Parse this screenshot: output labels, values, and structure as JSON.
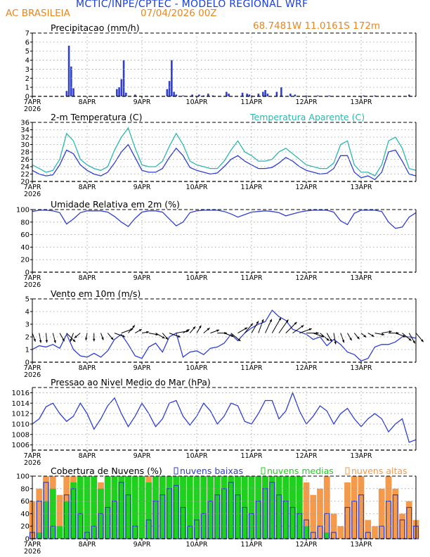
{
  "header": {
    "title": "MCTIC/INPE/CPTEC - MODELO REGIONAL WRF",
    "location": "AC BRASILEIA",
    "date": "07/04/2026 00Z",
    "coords": "68.7481W  11.0161S  172m"
  },
  "x_axis": {
    "ticks": [
      "7APR",
      "8APR",
      "9APR",
      "10APR",
      "11APR",
      "12APR",
      "13APR"
    ],
    "year": "2026",
    "hours_range": [
      0,
      168
    ]
  },
  "colors": {
    "blue": "#2f3fcf",
    "cyan": "#2ab7b0",
    "green": "#1fd11f",
    "orange": "#f59a4a",
    "dark": "#000000"
  },
  "chart_data": [
    {
      "id": "precip",
      "type": "bar",
      "title": "Precipitacao (mm/h)",
      "ylim": [
        0,
        7
      ],
      "yticks": [
        0,
        1,
        2,
        3,
        4,
        5,
        6,
        7
      ],
      "x": [
        15,
        16,
        17,
        18,
        37,
        38,
        39,
        40,
        41,
        45,
        59,
        60,
        61,
        62,
        63,
        66,
        70,
        73,
        75,
        77,
        79,
        85,
        86,
        92,
        94,
        95,
        96,
        99,
        101,
        102,
        103,
        107,
        109,
        113,
        115,
        120,
        125,
        130,
        145,
        150,
        165
      ],
      "values": [
        0.6,
        5.6,
        3.3,
        0.9,
        0.8,
        1.0,
        1.9,
        4.0,
        0.4,
        0.2,
        0.8,
        1.7,
        4.0,
        0.5,
        0.2,
        0.1,
        0.2,
        0.2,
        0.1,
        0.3,
        0.1,
        0.5,
        0.3,
        0.4,
        0.3,
        0.2,
        0.1,
        0.3,
        0.5,
        0.7,
        0.3,
        0.5,
        1.0,
        0.3,
        0.2,
        0.1,
        0.1,
        0.1,
        0.1,
        0.1,
        0.2
      ]
    },
    {
      "id": "temp",
      "type": "line",
      "title": "2-m Temperatura (C)",
      "legend": "Temperatura Aparente (C)",
      "ylim": [
        20,
        36
      ],
      "yticks": [
        20,
        22,
        24,
        26,
        28,
        30,
        32,
        34,
        36
      ],
      "x": [
        0,
        3,
        6,
        9,
        12,
        15,
        18,
        21,
        24,
        27,
        30,
        33,
        36,
        39,
        42,
        45,
        48,
        51,
        54,
        57,
        60,
        63,
        66,
        69,
        72,
        75,
        78,
        81,
        84,
        87,
        90,
        93,
        96,
        99,
        102,
        105,
        108,
        111,
        114,
        117,
        120,
        123,
        126,
        129,
        132,
        135,
        138,
        141,
        144,
        147,
        150,
        153,
        156,
        159,
        162,
        165,
        168
      ],
      "series": [
        {
          "name": "2-m Temperatura (C)",
          "values": [
            23.0,
            22.0,
            21.5,
            21.8,
            24.5,
            28.5,
            27.5,
            24.5,
            23.0,
            22.0,
            21.5,
            22.5,
            25.0,
            28.0,
            30.0,
            26.5,
            23.0,
            22.5,
            22.5,
            23.5,
            26.5,
            29.0,
            27.0,
            23.8,
            23.0,
            22.5,
            22.0,
            22.3,
            24.0,
            26.0,
            27.0,
            25.5,
            24.5,
            23.5,
            23.5,
            23.8,
            25.0,
            26.5,
            25.5,
            24.0,
            23.0,
            22.5,
            22.0,
            22.2,
            23.5,
            27.0,
            27.0,
            22.5,
            21.0,
            21.5,
            20.5,
            22.5,
            28.0,
            28.5,
            25.5,
            22.0,
            21.5
          ]
        },
        {
          "name": "Temperatura Aparente (C)",
          "values": [
            24.5,
            23.5,
            22.5,
            23.0,
            26.0,
            33.0,
            31.0,
            26.0,
            24.5,
            23.5,
            23.0,
            24.0,
            28.5,
            32.0,
            34.5,
            29.0,
            24.5,
            24.0,
            24.0,
            25.5,
            29.5,
            33.0,
            30.0,
            25.5,
            24.5,
            24.0,
            23.5,
            23.5,
            25.5,
            28.5,
            31.0,
            28.0,
            27.0,
            25.5,
            25.5,
            26.0,
            28.0,
            29.0,
            27.5,
            26.0,
            24.5,
            24.0,
            23.5,
            23.5,
            25.0,
            30.0,
            31.0,
            24.5,
            22.5,
            22.5,
            21.5,
            24.5,
            31.0,
            32.0,
            29.0,
            23.5,
            23.0
          ]
        }
      ]
    },
    {
      "id": "rh",
      "type": "line",
      "title": "Umidade Relativa em 2m (%)",
      "ylim": [
        0,
        100
      ],
      "yticks": [
        0,
        20,
        40,
        60,
        80,
        100
      ],
      "x": [
        0,
        3,
        6,
        9,
        12,
        15,
        18,
        21,
        24,
        27,
        30,
        33,
        36,
        39,
        42,
        45,
        48,
        51,
        54,
        57,
        60,
        63,
        66,
        69,
        72,
        75,
        78,
        81,
        84,
        87,
        90,
        93,
        96,
        99,
        102,
        105,
        108,
        111,
        114,
        117,
        120,
        123,
        126,
        129,
        132,
        135,
        138,
        141,
        144,
        147,
        150,
        153,
        156,
        159,
        162,
        165,
        168
      ],
      "values": [
        97,
        99,
        99,
        98,
        95,
        77,
        85,
        95,
        98,
        98,
        98,
        96,
        89,
        80,
        73,
        86,
        96,
        98,
        98,
        96,
        85,
        74,
        80,
        95,
        98,
        99,
        99,
        99,
        97,
        93,
        88,
        92,
        96,
        97,
        98,
        97,
        95,
        90,
        93,
        96,
        98,
        99,
        99,
        99,
        96,
        82,
        76,
        94,
        99,
        99,
        99,
        97,
        80,
        70,
        72,
        88,
        95
      ]
    },
    {
      "id": "wind",
      "type": "line",
      "title": "Vento em 10m (m/s)",
      "ylim": [
        0,
        5
      ],
      "yticks": [
        0,
        1,
        2,
        3,
        4,
        5
      ],
      "x": [
        0,
        3,
        6,
        9,
        12,
        15,
        18,
        21,
        24,
        27,
        30,
        33,
        36,
        39,
        42,
        45,
        48,
        51,
        54,
        57,
        60,
        63,
        66,
        69,
        72,
        75,
        78,
        81,
        84,
        87,
        90,
        93,
        96,
        99,
        102,
        105,
        108,
        111,
        114,
        117,
        120,
        123,
        126,
        129,
        132,
        135,
        138,
        141,
        144,
        147,
        150,
        153,
        156,
        159,
        162,
        165,
        168
      ],
      "values": [
        1.0,
        1.3,
        1.2,
        1.4,
        1.1,
        2.2,
        1.0,
        0.5,
        0.4,
        0.7,
        0.4,
        0.9,
        1.8,
        2.2,
        1.4,
        0.5,
        0.3,
        1.2,
        1.5,
        0.8,
        2.0,
        2.3,
        0.4,
        0.8,
        0.9,
        0.6,
        1.1,
        1.2,
        1.5,
        2.2,
        1.7,
        2.3,
        2.7,
        3.0,
        3.2,
        4.1,
        3.6,
        3.3,
        2.6,
        2.4,
        2.2,
        1.8,
        2.0,
        1.3,
        1.8,
        1.4,
        0.8,
        0.6,
        0.1,
        0.3,
        1.2,
        1.4,
        1.4,
        1.6,
        2.0,
        2.0,
        1.9
      ],
      "arrow_baseline": 2.3,
      "arrow_dirs": [
        160,
        170,
        175,
        165,
        150,
        135,
        200,
        230,
        190,
        180,
        160,
        140,
        110,
        70,
        40,
        60,
        80,
        100,
        120,
        140,
        110,
        80,
        60,
        40,
        30,
        50,
        70,
        90,
        110,
        130,
        60,
        40,
        30,
        20,
        25,
        30,
        35,
        45,
        55,
        70,
        90,
        110,
        130,
        150,
        170,
        160,
        150,
        140,
        130,
        120,
        100,
        80,
        90,
        110,
        130,
        150,
        140
      ]
    },
    {
      "id": "pressure",
      "type": "line",
      "title": "Pressao ao Nivel Medio do Mar (hPa)",
      "ylim": [
        1005,
        1017
      ],
      "yticks": [
        1006,
        1008,
        1010,
        1012,
        1014,
        1016
      ],
      "x": [
        0,
        3,
        6,
        9,
        12,
        15,
        18,
        21,
        24,
        27,
        30,
        33,
        36,
        39,
        42,
        45,
        48,
        51,
        54,
        57,
        60,
        63,
        66,
        69,
        72,
        75,
        78,
        81,
        84,
        87,
        90,
        93,
        96,
        99,
        102,
        105,
        108,
        111,
        114,
        117,
        120,
        123,
        126,
        129,
        132,
        135,
        138,
        141,
        144,
        147,
        150,
        153,
        156,
        159,
        162,
        165,
        168
      ],
      "values": [
        1010.0,
        1011.0,
        1013.3,
        1014.0,
        1012.0,
        1010.5,
        1011.5,
        1014.0,
        1012.0,
        1009.0,
        1011.0,
        1013.5,
        1015.0,
        1012.0,
        1009.5,
        1011.5,
        1014.0,
        1012.0,
        1009.5,
        1011.0,
        1014.0,
        1014.5,
        1011.5,
        1009.8,
        1011.5,
        1014.0,
        1012.5,
        1010.0,
        1011.5,
        1014.0,
        1013.5,
        1010.5,
        1010.0,
        1012.0,
        1014.5,
        1014.5,
        1011.0,
        1012.5,
        1016.0,
        1012.5,
        1010.0,
        1011.5,
        1013.5,
        1012.5,
        1010.0,
        1012.0,
        1013.0,
        1011.0,
        1009.5,
        1011.0,
        1012.0,
        1011.0,
        1008.5,
        1010.0,
        1011.0,
        1006.5,
        1007.0
      ]
    },
    {
      "id": "clouds",
      "type": "bar",
      "title": "Cobertura de Nuvens (%)",
      "legend": [
        "nuvens baixas",
        "nuvens medias",
        "nuvens altas"
      ],
      "ylim": [
        0,
        100
      ],
      "yticks": [
        0,
        20,
        40,
        60,
        80,
        100
      ],
      "x": [
        0,
        3,
        6,
        9,
        12,
        15,
        18,
        21,
        24,
        27,
        30,
        33,
        36,
        39,
        42,
        45,
        48,
        51,
        54,
        57,
        60,
        63,
        66,
        69,
        72,
        75,
        78,
        81,
        84,
        87,
        90,
        93,
        96,
        99,
        102,
        105,
        108,
        111,
        114,
        117,
        120,
        123,
        126,
        129,
        132,
        135,
        138,
        141,
        144,
        147,
        150,
        153,
        156,
        159,
        162,
        165,
        168
      ],
      "series": [
        {
          "name": "nuvens altas",
          "values": [
            60,
            80,
            100,
            100,
            70,
            100,
            100,
            100,
            100,
            100,
            90,
            100,
            100,
            100,
            100,
            100,
            100,
            100,
            100,
            100,
            100,
            100,
            100,
            100,
            100,
            100,
            100,
            100,
            100,
            100,
            100,
            100,
            100,
            100,
            100,
            100,
            100,
            100,
            100,
            100,
            90,
            70,
            80,
            100,
            40,
            20,
            90,
            100,
            100,
            30,
            20,
            80,
            100,
            80,
            40,
            60,
            30
          ]
        },
        {
          "name": "nuvens medias",
          "values": [
            0,
            10,
            60,
            80,
            20,
            60,
            90,
            100,
            100,
            100,
            80,
            100,
            100,
            100,
            100,
            100,
            100,
            90,
            100,
            100,
            100,
            100,
            100,
            100,
            100,
            100,
            100,
            100,
            100,
            100,
            100,
            100,
            100,
            100,
            100,
            100,
            100,
            100,
            100,
            100,
            20,
            0,
            0,
            10,
            0,
            0,
            0,
            0,
            0,
            0,
            0,
            0,
            0,
            0,
            0,
            0,
            0
          ]
        },
        {
          "name": "nuvens baixas",
          "values": [
            10,
            60,
            90,
            20,
            0,
            70,
            80,
            40,
            10,
            20,
            40,
            50,
            60,
            90,
            70,
            20,
            0,
            30,
            60,
            70,
            80,
            85,
            50,
            20,
            30,
            40,
            60,
            70,
            80,
            90,
            70,
            50,
            40,
            60,
            80,
            90,
            70,
            60,
            50,
            40,
            30,
            10,
            20,
            40,
            10,
            0,
            50,
            60,
            70,
            10,
            0,
            20,
            60,
            70,
            30,
            50,
            20
          ]
        }
      ]
    }
  ]
}
